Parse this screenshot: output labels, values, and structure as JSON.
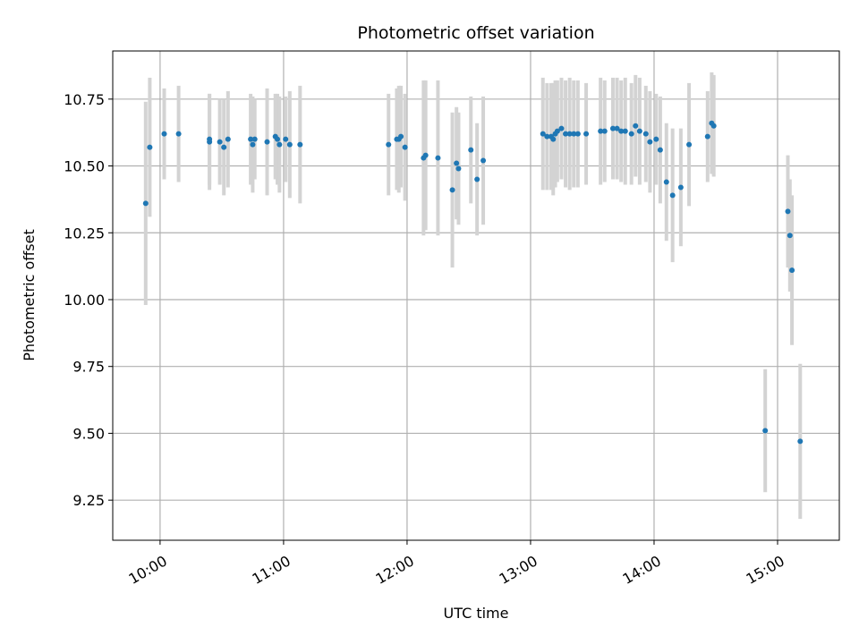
{
  "chart_data": {
    "type": "scatter",
    "title": "Photometric offset variation",
    "xlabel": "UTC time",
    "ylabel": "Photometric offset",
    "x_axis_type": "time",
    "xlim": [
      "09:37",
      "15:30"
    ],
    "ylim": [
      9.1,
      10.93
    ],
    "xticks": [
      "10:00",
      "11:00",
      "12:00",
      "13:00",
      "14:00",
      "15:00"
    ],
    "yticks": [
      9.25,
      9.5,
      9.75,
      10.0,
      10.25,
      10.5,
      10.75
    ],
    "grid": true,
    "point_color": "#1f77b4",
    "errorbar_color": "#d3d3d3",
    "series": [
      {
        "x": [
          "09:53",
          "09:55",
          "10:02",
          "10:09",
          "10:24",
          "10:24",
          "10:29",
          "10:31",
          "10:33",
          "10:44",
          "10:45",
          "10:46",
          "10:52",
          "10:56",
          "10:57",
          "10:58",
          "11:01",
          "11:03",
          "11:08",
          "11:51",
          "11:55",
          "11:56",
          "11:57",
          "11:59",
          "12:08",
          "12:09",
          "12:15",
          "12:22",
          "12:24",
          "12:25",
          "12:31",
          "12:34",
          "12:37",
          "13:06",
          "13:08",
          "13:10",
          "13:11",
          "13:12",
          "13:13",
          "13:15",
          "13:17",
          "13:19",
          "13:21",
          "13:23",
          "13:27",
          "13:34",
          "13:36",
          "13:40",
          "13:42",
          "13:44",
          "13:46",
          "13:49",
          "13:51",
          "13:53",
          "13:56",
          "13:58",
          "14:01",
          "14:03",
          "14:06",
          "14:09",
          "14:13",
          "14:17",
          "14:26",
          "14:28",
          "14:29",
          "14:54",
          "15:05",
          "15:06",
          "15:07",
          "15:11"
        ],
        "y": [
          10.36,
          10.57,
          10.62,
          10.62,
          10.6,
          10.59,
          10.59,
          10.57,
          10.6,
          10.6,
          10.58,
          10.6,
          10.59,
          10.61,
          10.6,
          10.58,
          10.6,
          10.58,
          10.58,
          10.58,
          10.6,
          10.6,
          10.61,
          10.57,
          10.53,
          10.54,
          10.53,
          10.41,
          10.51,
          10.49,
          10.56,
          10.45,
          10.52,
          10.62,
          10.61,
          10.61,
          10.6,
          10.62,
          10.63,
          10.64,
          10.62,
          10.62,
          10.62,
          10.62,
          10.62,
          10.63,
          10.63,
          10.64,
          10.64,
          10.63,
          10.63,
          10.62,
          10.65,
          10.63,
          10.62,
          10.59,
          10.6,
          10.56,
          10.44,
          10.39,
          10.42,
          10.58,
          10.61,
          10.66,
          10.65,
          9.51,
          10.33,
          10.24,
          10.11,
          9.47
        ],
        "err": [
          0.38,
          0.26,
          0.17,
          0.18,
          0.17,
          0.18,
          0.16,
          0.18,
          0.18,
          0.17,
          0.18,
          0.15,
          0.2,
          0.16,
          0.17,
          0.18,
          0.16,
          0.2,
          0.22,
          0.19,
          0.19,
          0.2,
          0.19,
          0.2,
          0.29,
          0.28,
          0.29,
          0.29,
          0.21,
          0.21,
          0.2,
          0.21,
          0.24,
          0.21,
          0.2,
          0.2,
          0.21,
          0.2,
          0.19,
          0.19,
          0.2,
          0.21,
          0.2,
          0.2,
          0.19,
          0.2,
          0.19,
          0.19,
          0.19,
          0.19,
          0.2,
          0.19,
          0.19,
          0.2,
          0.18,
          0.19,
          0.17,
          0.2,
          0.22,
          0.25,
          0.22,
          0.23,
          0.17,
          0.19,
          0.19,
          0.23,
          0.21,
          0.21,
          0.28,
          0.29
        ]
      }
    ]
  }
}
